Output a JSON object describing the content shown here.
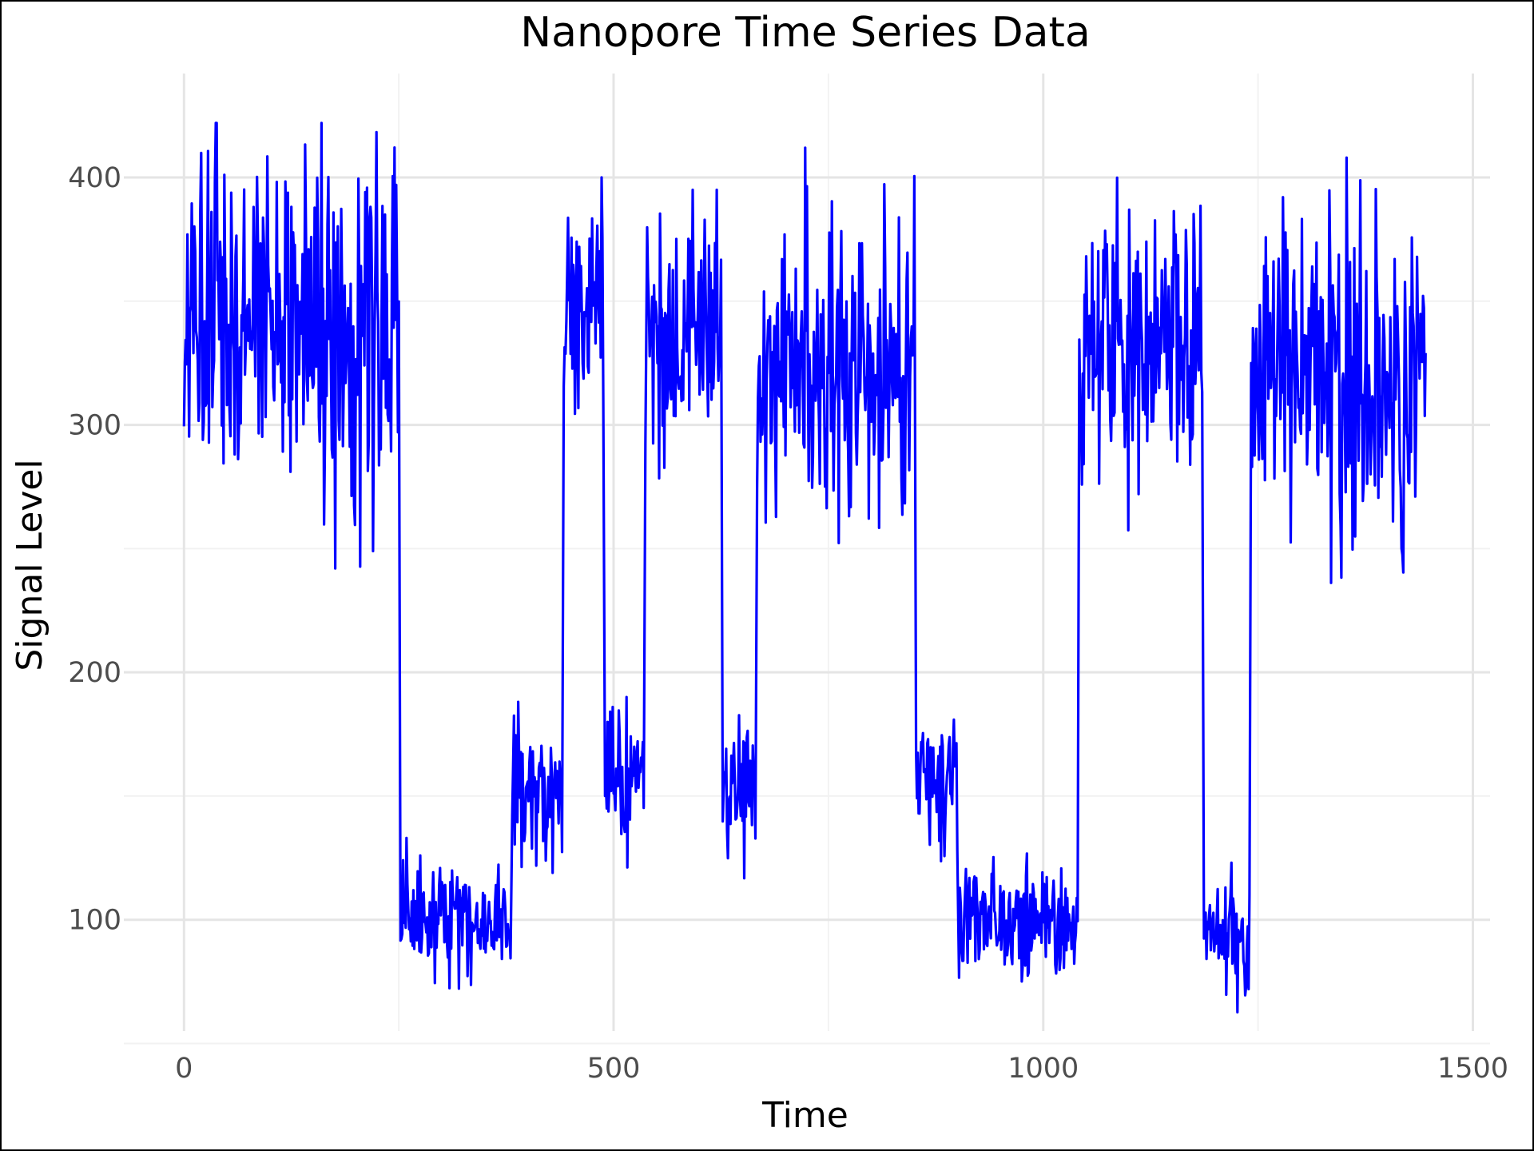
{
  "chart_data": {
    "type": "line",
    "title": "Nanopore Time Series Data",
    "xlabel": "Time",
    "ylabel": "Signal Level",
    "xlim": [
      -70,
      1520
    ],
    "ylim": [
      55,
      442
    ],
    "xticks": [
      0,
      500,
      1000,
      1500
    ],
    "yticks": [
      100,
      200,
      300,
      400
    ],
    "grid": true,
    "legend": "none",
    "colors": {
      "line": "#0000ff",
      "grid_major": "#e5e5e5",
      "grid_minor": "#f2f2f2",
      "tick_text": "#4d4d4d"
    },
    "series": [
      {
        "segments": [
          {
            "x": [
              0,
              250
            ],
            "mean": 340,
            "amp": 50,
            "low": 200,
            "high": 422
          },
          {
            "x": [
              252,
              380
            ],
            "mean": 100,
            "amp": 15,
            "low": 62,
            "high": 135
          },
          {
            "x": [
              382,
              440
            ],
            "mean": 150,
            "amp": 22,
            "low": 105,
            "high": 195
          },
          {
            "x": [
              442,
              488
            ],
            "mean": 350,
            "amp": 28,
            "low": 290,
            "high": 400
          },
          {
            "x": [
              490,
              535
            ],
            "mean": 155,
            "amp": 18,
            "low": 100,
            "high": 190
          },
          {
            "x": [
              537,
              625
            ],
            "mean": 335,
            "amp": 35,
            "low": 203,
            "high": 395
          },
          {
            "x": [
              627,
              665
            ],
            "mean": 150,
            "amp": 17,
            "low": 112,
            "high": 210
          },
          {
            "x": [
              667,
              850
            ],
            "mean": 320,
            "amp": 45,
            "low": 198,
            "high": 412
          },
          {
            "x": [
              852,
              900
            ],
            "mean": 160,
            "amp": 20,
            "low": 115,
            "high": 207
          },
          {
            "x": [
              902,
              1040
            ],
            "mean": 100,
            "amp": 15,
            "low": 60,
            "high": 135
          },
          {
            "x": [
              1042,
              1185
            ],
            "mean": 330,
            "amp": 40,
            "low": 218,
            "high": 418
          },
          {
            "x": [
              1187,
              1240
            ],
            "mean": 95,
            "amp": 15,
            "low": 60,
            "high": 130
          },
          {
            "x": [
              1242,
              1445
            ],
            "mean": 320,
            "amp": 45,
            "low": 165,
            "high": 412
          }
        ],
        "values_summary": "Switching levels: high (~320-350), low (~95-100), intermediate (~150-160)"
      }
    ]
  }
}
